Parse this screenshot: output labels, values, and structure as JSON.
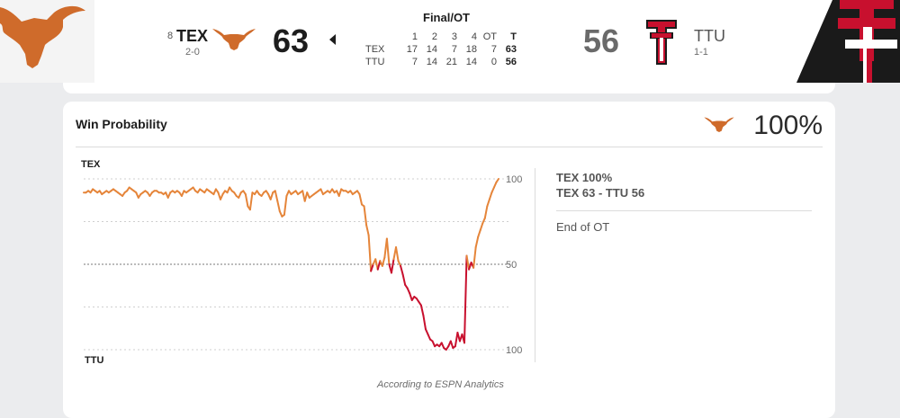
{
  "colors": {
    "home_orange": "#e5853a",
    "away_red": "#c8102e",
    "ttu_black": "#1a1a1a"
  },
  "header": {
    "status": "Final/OT",
    "away_team": {
      "rank": "8",
      "abbr": "TEX",
      "record": "2-0",
      "score": "63",
      "logo": "longhorn-icon"
    },
    "home_team": {
      "abbr": "TTU",
      "record": "1-1",
      "score": "56",
      "logo": "double-t-icon"
    },
    "linescore": {
      "headers": [
        "1",
        "2",
        "3",
        "4",
        "OT",
        "T"
      ],
      "rows": [
        {
          "team": "TEX",
          "periods": [
            "17",
            "14",
            "7",
            "18",
            "7"
          ],
          "total": "63"
        },
        {
          "team": "TTU",
          "periods": [
            "7",
            "14",
            "21",
            "14",
            "0"
          ],
          "total": "56"
        }
      ]
    }
  },
  "win_probability": {
    "title": "Win Probability",
    "current_pct": "100%",
    "top_label": "TEX",
    "bottom_label": "TTU",
    "note": "According to ESPN Analytics",
    "side_panel": {
      "pct_line": "TEX 100%",
      "score_line": "TEX 63  - TTU 56",
      "play_text": "End of OT"
    }
  },
  "chart_data": {
    "type": "line",
    "y_tick_labels": [
      "100",
      "50",
      "100"
    ],
    "ylim": [
      0,
      100
    ],
    "series": [
      {
        "values": [
          92,
          92,
          93,
          92,
          94,
          93,
          92,
          93,
          91,
          92,
          93,
          92,
          93,
          94,
          93,
          92,
          91,
          90,
          92,
          93,
          95,
          94,
          93,
          92,
          89,
          91,
          92,
          93,
          92,
          90,
          92,
          93,
          93,
          92,
          92,
          91,
          92,
          89,
          92,
          93,
          92,
          93,
          92,
          90,
          93,
          92,
          93,
          94,
          95,
          93,
          92,
          94,
          93,
          92,
          94,
          93,
          92,
          91,
          94,
          92,
          88,
          91,
          93,
          92,
          95,
          93,
          92,
          90,
          89,
          92,
          93,
          91,
          84,
          82,
          92,
          91,
          93,
          91,
          90,
          92,
          93,
          91,
          88,
          92,
          93,
          87,
          81,
          78,
          79,
          90,
          93,
          91,
          92,
          93,
          91,
          92,
          93,
          87,
          92,
          89,
          90,
          91,
          92,
          93,
          94,
          91,
          92,
          93,
          92,
          94,
          92,
          93,
          90,
          94,
          93,
          93,
          92,
          93,
          91,
          92,
          93,
          91,
          85,
          84,
          73,
          67,
          46,
          50,
          53,
          47,
          52,
          49,
          54,
          65,
          50,
          45,
          53,
          60,
          52,
          49,
          44,
          38,
          36,
          33,
          29,
          31,
          30,
          28,
          26,
          20,
          12,
          9,
          6,
          5,
          2,
          3,
          2,
          4,
          1,
          0,
          2,
          5,
          1,
          2,
          10,
          5,
          9,
          4,
          55,
          47,
          51,
          48,
          60,
          66,
          70,
          74,
          77,
          84,
          88,
          92,
          95,
          98,
          100
        ],
        "description": "TEX win probability (%) over the game"
      }
    ]
  }
}
